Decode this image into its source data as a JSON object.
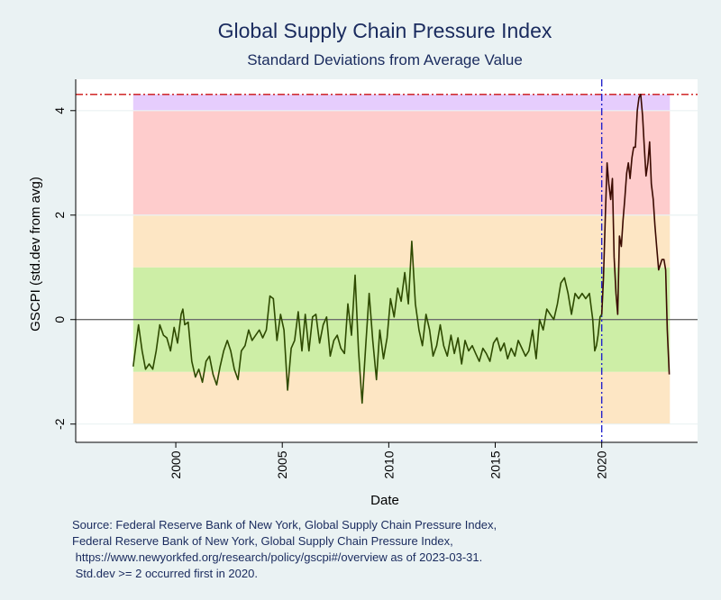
{
  "chart_data": {
    "type": "line",
    "title": "Global Supply Chain Pressure Index",
    "subtitle": "Standard Deviations from Average Value",
    "xlabel": "Date",
    "ylabel": "GSCPI (std.dev from avg)",
    "xlim": [
      1995.3,
      2024.5
    ],
    "ylim": [
      -2.35,
      4.6
    ],
    "x_ticks": [
      2000,
      2005,
      2010,
      2015,
      2020
    ],
    "y_ticks": [
      -2,
      0,
      2,
      4
    ],
    "grid": true,
    "legend": "none",
    "bands": [
      {
        "from": -2,
        "to": -1,
        "color": "#fde6c4"
      },
      {
        "from": -1,
        "to": 1,
        "color": "#cdeea6"
      },
      {
        "from": 1,
        "to": 2,
        "color": "#fde6c4"
      },
      {
        "from": 2,
        "to": 4,
        "color": "#fecccc"
      },
      {
        "from": 4,
        "to": 4.31,
        "color": "#e6cdfd"
      }
    ],
    "band_x_range": [
      1998.0,
      2023.2
    ],
    "zero_line": 0,
    "max_line": {
      "value": 4.31,
      "color": "#cc1111"
    },
    "first_event_line": {
      "date": 2020.0,
      "color": "#2222cc"
    },
    "line_color_before": "#2e4a00",
    "line_color_after": "#3a0a00",
    "series": [
      {
        "values": [
          [
            1998.0,
            -0.9
          ],
          [
            1998.25,
            -0.1
          ],
          [
            1998.42,
            -0.6
          ],
          [
            1998.58,
            -0.95
          ],
          [
            1998.75,
            -0.85
          ],
          [
            1998.92,
            -0.95
          ],
          [
            1999.08,
            -0.6
          ],
          [
            1999.25,
            -0.1
          ],
          [
            1999.42,
            -0.3
          ],
          [
            1999.58,
            -0.35
          ],
          [
            1999.75,
            -0.6
          ],
          [
            1999.92,
            -0.15
          ],
          [
            2000.08,
            -0.45
          ],
          [
            2000.25,
            0.1
          ],
          [
            2000.33,
            0.2
          ],
          [
            2000.42,
            -0.1
          ],
          [
            2000.58,
            -0.05
          ],
          [
            2000.75,
            -0.8
          ],
          [
            2000.92,
            -1.1
          ],
          [
            2001.08,
            -0.95
          ],
          [
            2001.25,
            -1.2
          ],
          [
            2001.42,
            -0.8
          ],
          [
            2001.58,
            -0.7
          ],
          [
            2001.75,
            -1.05
          ],
          [
            2001.92,
            -1.25
          ],
          [
            2002.08,
            -0.9
          ],
          [
            2002.25,
            -0.6
          ],
          [
            2002.42,
            -0.4
          ],
          [
            2002.58,
            -0.6
          ],
          [
            2002.75,
            -0.95
          ],
          [
            2002.92,
            -1.15
          ],
          [
            2003.08,
            -0.6
          ],
          [
            2003.25,
            -0.5
          ],
          [
            2003.42,
            -0.2
          ],
          [
            2003.58,
            -0.4
          ],
          [
            2003.75,
            -0.3
          ],
          [
            2003.92,
            -0.2
          ],
          [
            2004.08,
            -0.35
          ],
          [
            2004.25,
            -0.2
          ],
          [
            2004.42,
            0.45
          ],
          [
            2004.58,
            0.4
          ],
          [
            2004.75,
            -0.4
          ],
          [
            2004.92,
            0.1
          ],
          [
            2005.08,
            -0.2
          ],
          [
            2005.25,
            -1.35
          ],
          [
            2005.42,
            -0.55
          ],
          [
            2005.58,
            -0.4
          ],
          [
            2005.75,
            0.15
          ],
          [
            2005.92,
            -0.6
          ],
          [
            2006.08,
            0.1
          ],
          [
            2006.25,
            -0.6
          ],
          [
            2006.42,
            0.05
          ],
          [
            2006.58,
            0.1
          ],
          [
            2006.75,
            -0.45
          ],
          [
            2006.92,
            -0.1
          ],
          [
            2007.08,
            0.05
          ],
          [
            2007.25,
            -0.7
          ],
          [
            2007.42,
            -0.4
          ],
          [
            2007.58,
            -0.3
          ],
          [
            2007.75,
            -0.55
          ],
          [
            2007.92,
            -0.65
          ],
          [
            2008.08,
            0.3
          ],
          [
            2008.25,
            -0.3
          ],
          [
            2008.42,
            0.85
          ],
          [
            2008.58,
            -0.6
          ],
          [
            2008.75,
            -1.6
          ],
          [
            2008.92,
            -0.5
          ],
          [
            2009.08,
            0.5
          ],
          [
            2009.25,
            -0.4
          ],
          [
            2009.42,
            -1.15
          ],
          [
            2009.58,
            -0.2
          ],
          [
            2009.75,
            -0.75
          ],
          [
            2009.92,
            -0.35
          ],
          [
            2010.08,
            0.4
          ],
          [
            2010.25,
            0.05
          ],
          [
            2010.42,
            0.6
          ],
          [
            2010.58,
            0.35
          ],
          [
            2010.75,
            0.9
          ],
          [
            2010.92,
            0.3
          ],
          [
            2011.08,
            1.5
          ],
          [
            2011.25,
            0.3
          ],
          [
            2011.42,
            -0.2
          ],
          [
            2011.58,
            -0.5
          ],
          [
            2011.75,
            0.1
          ],
          [
            2011.92,
            -0.2
          ],
          [
            2012.08,
            -0.7
          ],
          [
            2012.25,
            -0.5
          ],
          [
            2012.42,
            -0.1
          ],
          [
            2012.58,
            -0.5
          ],
          [
            2012.75,
            -0.7
          ],
          [
            2012.92,
            -0.3
          ],
          [
            2013.08,
            -0.65
          ],
          [
            2013.25,
            -0.35
          ],
          [
            2013.42,
            -0.85
          ],
          [
            2013.58,
            -0.4
          ],
          [
            2013.75,
            -0.6
          ],
          [
            2013.92,
            -0.5
          ],
          [
            2014.08,
            -0.65
          ],
          [
            2014.25,
            -0.8
          ],
          [
            2014.42,
            -0.55
          ],
          [
            2014.58,
            -0.65
          ],
          [
            2014.75,
            -0.8
          ],
          [
            2014.92,
            -0.45
          ],
          [
            2015.08,
            -0.35
          ],
          [
            2015.25,
            -0.6
          ],
          [
            2015.42,
            -0.45
          ],
          [
            2015.58,
            -0.75
          ],
          [
            2015.75,
            -0.55
          ],
          [
            2015.92,
            -0.7
          ],
          [
            2016.08,
            -0.4
          ],
          [
            2016.25,
            -0.55
          ],
          [
            2016.42,
            -0.7
          ],
          [
            2016.58,
            -0.6
          ],
          [
            2016.75,
            -0.2
          ],
          [
            2016.92,
            -0.75
          ],
          [
            2017.08,
            0.0
          ],
          [
            2017.25,
            -0.2
          ],
          [
            2017.42,
            0.2
          ],
          [
            2017.58,
            0.1
          ],
          [
            2017.75,
            0.0
          ],
          [
            2017.92,
            0.3
          ],
          [
            2018.08,
            0.7
          ],
          [
            2018.25,
            0.8
          ],
          [
            2018.42,
            0.5
          ],
          [
            2018.58,
            0.1
          ],
          [
            2018.75,
            0.5
          ],
          [
            2018.92,
            0.4
          ],
          [
            2019.08,
            0.5
          ],
          [
            2019.25,
            0.4
          ],
          [
            2019.42,
            0.5
          ],
          [
            2019.58,
            0.0
          ],
          [
            2019.67,
            -0.6
          ],
          [
            2019.75,
            -0.5
          ],
          [
            2019.83,
            -0.3
          ],
          [
            2019.92,
            0.05
          ],
          [
            2020.0,
            0.1
          ],
          [
            2020.08,
            0.8
          ],
          [
            2020.17,
            2.0
          ],
          [
            2020.25,
            3.0
          ],
          [
            2020.33,
            2.6
          ],
          [
            2020.42,
            2.3
          ],
          [
            2020.5,
            2.7
          ],
          [
            2020.58,
            1.2
          ],
          [
            2020.67,
            0.5
          ],
          [
            2020.75,
            0.1
          ],
          [
            2020.83,
            1.6
          ],
          [
            2020.92,
            1.4
          ],
          [
            2021.0,
            1.9
          ],
          [
            2021.08,
            2.3
          ],
          [
            2021.17,
            2.8
          ],
          [
            2021.25,
            3.0
          ],
          [
            2021.33,
            2.7
          ],
          [
            2021.42,
            3.1
          ],
          [
            2021.5,
            3.3
          ],
          [
            2021.58,
            3.3
          ],
          [
            2021.67,
            4.0
          ],
          [
            2021.75,
            4.25
          ],
          [
            2021.83,
            4.31
          ],
          [
            2021.92,
            3.9
          ],
          [
            2022.0,
            3.3
          ],
          [
            2022.08,
            2.75
          ],
          [
            2022.17,
            3.0
          ],
          [
            2022.25,
            3.4
          ],
          [
            2022.33,
            2.6
          ],
          [
            2022.42,
            2.3
          ],
          [
            2022.5,
            1.8
          ],
          [
            2022.58,
            1.4
          ],
          [
            2022.67,
            0.95
          ],
          [
            2022.75,
            1.05
          ],
          [
            2022.83,
            1.15
          ],
          [
            2022.92,
            1.15
          ],
          [
            2023.0,
            0.95
          ],
          [
            2023.08,
            -0.2
          ],
          [
            2023.17,
            -1.05
          ]
        ]
      }
    ],
    "notes": [
      "Source: Federal Reserve Bank of New York, Global Supply Chain Pressure Index,",
      "Federal Reserve Bank of New York, Global Supply Chain Pressure Index,",
      " https://www.newyorkfed.org/research/policy/gscpi#/overview as of 2023-03-31.",
      " Std.dev >= 2 occurred first in 2020."
    ]
  }
}
